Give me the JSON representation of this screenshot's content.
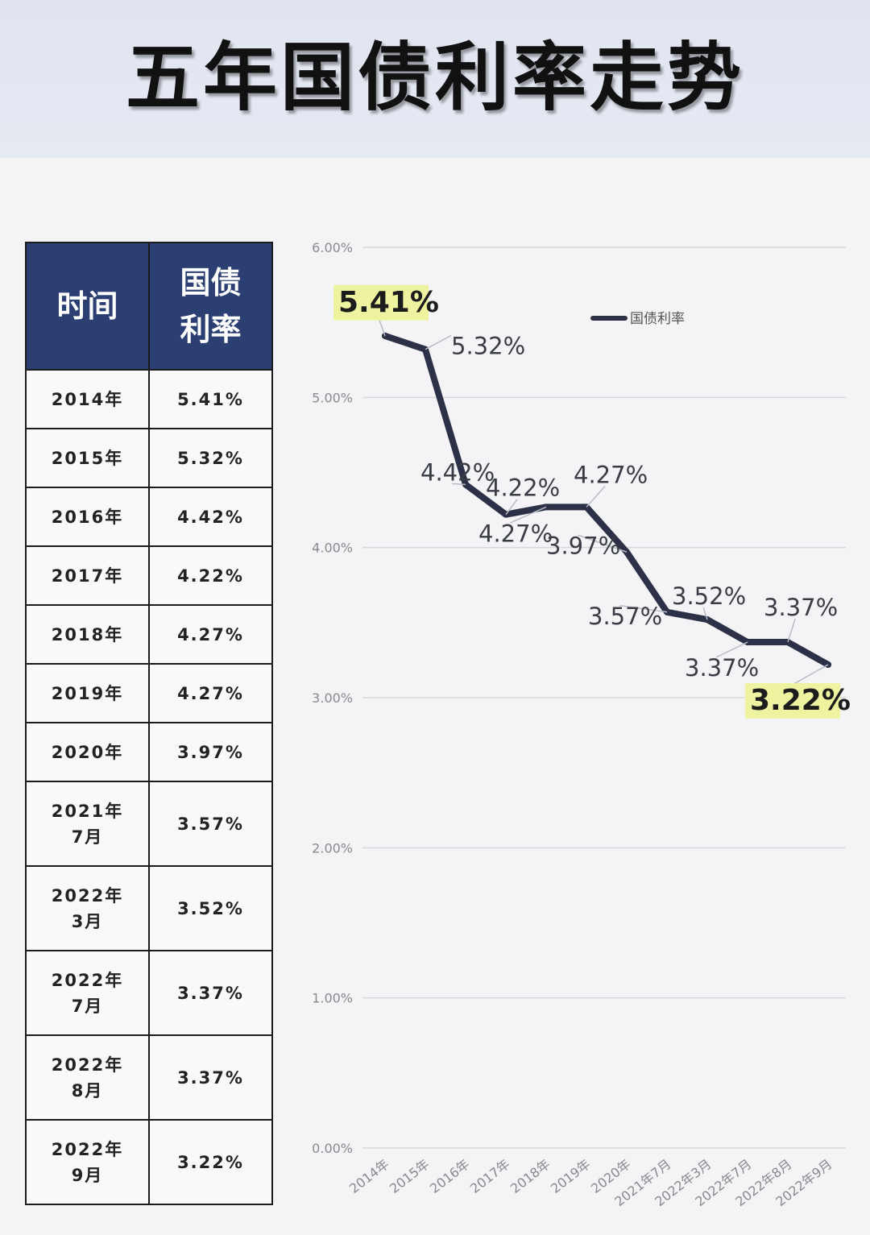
{
  "title": "五年国债利率走势",
  "table": {
    "headers": [
      "时间",
      "国债利率"
    ],
    "rows": [
      {
        "time": "2014年",
        "time2": "",
        "rate": "5.41%"
      },
      {
        "time": "2015年",
        "time2": "",
        "rate": "5.32%"
      },
      {
        "time": "2016年",
        "time2": "",
        "rate": "4.42%"
      },
      {
        "time": "2017年",
        "time2": "",
        "rate": "4.22%"
      },
      {
        "time": "2018年",
        "time2": "",
        "rate": "4.27%"
      },
      {
        "time": "2019年",
        "time2": "",
        "rate": "4.27%"
      },
      {
        "time": "2020年",
        "time2": "",
        "rate": "3.97%"
      },
      {
        "time": "2021年",
        "time2": "7月",
        "rate": "3.57%"
      },
      {
        "time": "2022年",
        "time2": "3月",
        "rate": "3.52%"
      },
      {
        "time": "2022年",
        "time2": "7月",
        "rate": "3.37%"
      },
      {
        "time": "2022年",
        "time2": "8月",
        "rate": "3.37%"
      },
      {
        "time": "2022年",
        "time2": "9月",
        "rate": "3.22%"
      }
    ]
  },
  "chart_data": {
    "type": "line",
    "title": "",
    "xlabel": "",
    "ylabel": "",
    "categories": [
      "2014年",
      "2015年",
      "2016年",
      "2017年",
      "2018年",
      "2019年",
      "2020年",
      "2021年7月",
      "2022年3月",
      "2022年7月",
      "2022年8月",
      "2022年9月"
    ],
    "series": [
      {
        "name": "国债利率",
        "values": [
          5.41,
          5.32,
          4.42,
          4.22,
          4.27,
          4.27,
          3.97,
          3.57,
          3.52,
          3.37,
          3.37,
          3.22
        ]
      }
    ],
    "data_labels": [
      "5.41%",
      "5.32%",
      "4.42%",
      "4.22%",
      "4.27%",
      "4.27%",
      "3.97%",
      "3.57%",
      "3.52%",
      "3.37%",
      "3.37%",
      "3.22%"
    ],
    "highlighted": [
      0,
      11
    ],
    "y_ticks": [
      "0.00%",
      "1.00%",
      "2.00%",
      "3.00%",
      "4.00%",
      "5.00%",
      "6.00%"
    ],
    "ylim": [
      0,
      6
    ],
    "grid": true,
    "legend": "top-right",
    "colors": {
      "line": "#2c3147",
      "highlight": "#eef3a0",
      "grid": "#d8d8dc",
      "header_bg": "#2b3f73"
    }
  }
}
